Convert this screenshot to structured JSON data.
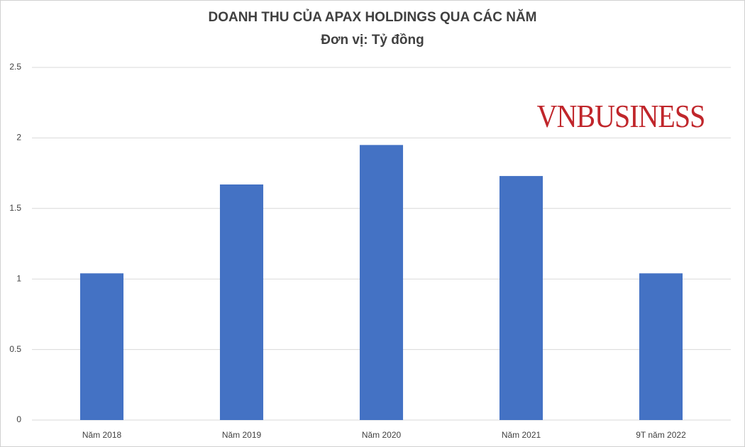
{
  "chart_data": {
    "type": "bar",
    "title": "DOANH THU CỦA APAX HOLDINGS QUA CÁC NĂM",
    "subtitle": "Đơn vị: Tỷ đồng",
    "watermark": "VNBUSINESS",
    "categories": [
      "Năm 2018",
      "Năm 2019",
      "Năm 2020",
      "Năm 2021",
      "9T năm 2022"
    ],
    "values": [
      1.04,
      1.67,
      1.95,
      1.73,
      1.04
    ],
    "color": "#4472c4",
    "ylim": [
      0,
      2.5
    ],
    "yticks": [
      0,
      0.5,
      1,
      1.5,
      2,
      2.5
    ],
    "grid": true
  }
}
